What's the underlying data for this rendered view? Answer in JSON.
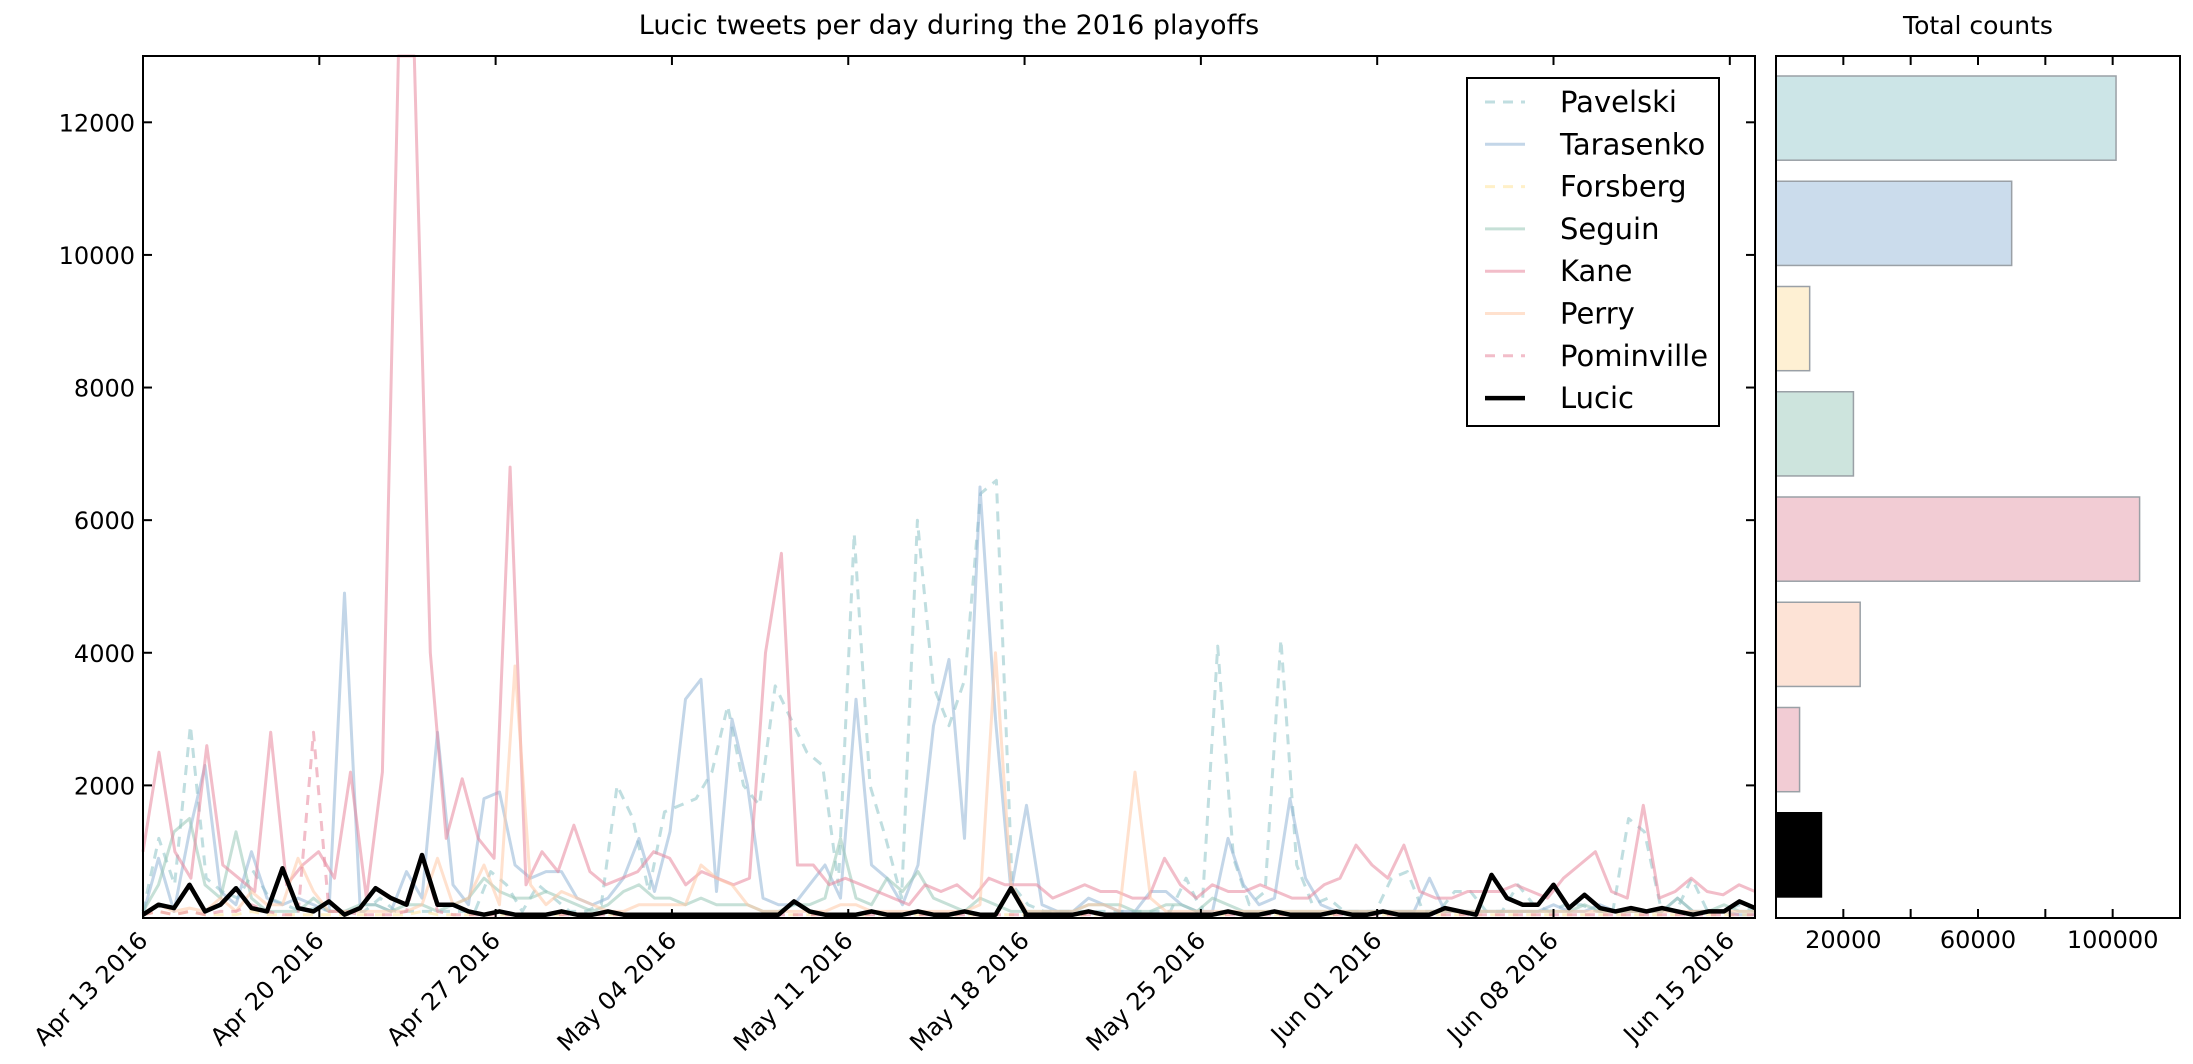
{
  "chart_data": [
    {
      "type": "line",
      "title": "Lucic tweets per day during the 2016 playoffs",
      "xlabel": "",
      "ylabel": "",
      "ylim": [
        0,
        13000
      ],
      "x_range": [
        "2016-04-13",
        "2016-06-16"
      ],
      "x_tick_labels": [
        "Apr 13 2016",
        "Apr 20 2016",
        "Apr 27 2016",
        "May 04 2016",
        "May 11 2016",
        "May 18 2016",
        "May 25 2016",
        "Jun 01 2016",
        "Jun 08 2016",
        "Jun 15 2016"
      ],
      "y_tick_labels": [
        "2000",
        "4000",
        "6000",
        "8000",
        "10000",
        "12000"
      ],
      "y_ticks": [
        2000,
        4000,
        6000,
        8000,
        10000,
        12000
      ],
      "grid": false,
      "legend_position": "top-right",
      "series": [
        {
          "name": "Pavelski",
          "color": "#8dc3c6",
          "dashed": true,
          "width": 3,
          "opacity": 0.55,
          "values": [
            100,
            1200,
            500,
            2900,
            600,
            400,
            300,
            700,
            300,
            200,
            100,
            150,
            100,
            100,
            100,
            300,
            100,
            100,
            100,
            100,
            100,
            100,
            700,
            500,
            100,
            500,
            300,
            100,
            100,
            200,
            2000,
            1500,
            400,
            1600,
            1700,
            1800,
            2200,
            3200,
            2000,
            1700,
            3500,
            3000,
            2500,
            2300,
            500,
            5800,
            2000,
            1200,
            300,
            6000,
            3500,
            2900,
            3600,
            6400,
            6600,
            500,
            200,
            100,
            100,
            100,
            100,
            100,
            100,
            100,
            100,
            100,
            600,
            100,
            4100,
            900,
            200,
            400,
            4200,
            800,
            200,
            300,
            100,
            100,
            100,
            600,
            700,
            100,
            100,
            400,
            400,
            100,
            100,
            500,
            200,
            100,
            200,
            200,
            100,
            100,
            1500,
            1300,
            200,
            100,
            600,
            100,
            100,
            200,
            100
          ]
        },
        {
          "name": "Tarasenko",
          "color": "#91b4d6",
          "dashed": false,
          "width": 3,
          "opacity": 0.55,
          "values": [
            50,
            900,
            100,
            1300,
            2300,
            400,
            200,
            1000,
            300,
            200,
            300,
            200,
            100,
            4900,
            200,
            200,
            100,
            700,
            300,
            2800,
            500,
            200,
            1800,
            1900,
            800,
            600,
            700,
            700,
            300,
            200,
            300,
            600,
            1200,
            400,
            1300,
            3300,
            3600,
            400,
            3000,
            2000,
            300,
            200,
            200,
            500,
            800,
            300,
            3300,
            800,
            600,
            200,
            800,
            2900,
            3900,
            1200,
            6500,
            3000,
            400,
            1700,
            200,
            100,
            100,
            300,
            200,
            100,
            100,
            400,
            400,
            200,
            100,
            100,
            1200,
            500,
            200,
            300,
            1800,
            600,
            200,
            100,
            100,
            100,
            100,
            100,
            100,
            600,
            100,
            100,
            100,
            100,
            100,
            100,
            100,
            200,
            100,
            100,
            200,
            100,
            100,
            100,
            100,
            300,
            100,
            100,
            100,
            50,
            50
          ]
        },
        {
          "name": "Forsberg",
          "color": "#ffe39b",
          "dashed": true,
          "width": 3,
          "opacity": 0.55,
          "values": [
            50,
            100,
            50,
            100,
            50,
            50,
            50,
            100,
            50,
            50,
            50,
            50,
            50,
            50,
            50,
            50,
            50,
            50,
            100,
            50,
            50,
            50,
            50,
            50,
            50,
            50,
            50,
            50,
            50,
            50,
            50,
            50,
            50,
            50,
            50,
            50,
            50,
            50,
            50,
            50,
            50,
            50,
            50,
            50,
            50,
            50,
            50,
            50,
            50,
            50,
            50,
            50,
            50,
            50,
            50,
            50,
            50,
            50,
            50,
            50,
            50,
            50,
            50,
            50,
            50,
            50,
            50,
            50,
            50,
            50,
            50,
            50,
            50,
            50,
            50,
            50,
            50,
            50,
            50,
            50,
            50,
            50,
            50,
            50,
            50,
            50,
            50,
            50,
            50,
            50,
            50,
            50,
            50,
            50,
            50,
            50,
            50,
            50,
            50,
            50,
            50,
            50,
            50,
            50,
            50
          ]
        },
        {
          "name": "Seguin",
          "color": "#98c7b7",
          "dashed": false,
          "width": 3,
          "opacity": 0.55,
          "values": [
            100,
            500,
            1300,
            1500,
            500,
            300,
            1300,
            300,
            100,
            100,
            100,
            300,
            100,
            100,
            200,
            200,
            100,
            200,
            200,
            100,
            200,
            300,
            600,
            400,
            300,
            300,
            400,
            300,
            200,
            100,
            200,
            400,
            500,
            300,
            300,
            200,
            300,
            200,
            200,
            200,
            100,
            100,
            200,
            200,
            300,
            1200,
            300,
            200,
            600,
            400,
            700,
            300,
            200,
            100,
            300,
            200,
            100,
            100,
            100,
            100,
            100,
            200,
            200,
            200,
            100,
            100,
            200,
            200,
            100,
            300,
            200,
            100,
            100,
            100,
            100,
            100,
            100,
            100,
            100,
            100,
            100,
            100,
            100,
            100,
            100,
            100,
            100,
            100,
            100,
            100,
            100,
            100,
            100,
            200,
            100,
            100,
            100,
            100,
            100,
            300,
            100,
            100,
            200,
            100,
            100
          ]
        },
        {
          "name": "Kane",
          "color": "#e8879c",
          "dashed": false,
          "width": 3,
          "opacity": 0.55,
          "values": [
            1000,
            2500,
            1000,
            600,
            2600,
            800,
            600,
            400,
            2800,
            500,
            800,
            1000,
            600,
            2200,
            300,
            2200,
            13000,
            13000,
            4000,
            1200,
            2100,
            1200,
            900,
            6800,
            500,
            1000,
            700,
            1400,
            700,
            500,
            600,
            700,
            1000,
            900,
            500,
            700,
            600,
            500,
            600,
            4000,
            5500,
            800,
            800,
            500,
            600,
            500,
            400,
            300,
            200,
            500,
            400,
            500,
            300,
            600,
            500,
            500,
            500,
            300,
            400,
            500,
            400,
            400,
            300,
            300,
            900,
            500,
            300,
            500,
            400,
            400,
            500,
            400,
            300,
            300,
            500,
            600,
            1100,
            800,
            600,
            1100,
            400,
            300,
            300,
            400,
            400,
            400,
            500,
            400,
            300,
            600,
            800,
            1000,
            400,
            300,
            1700,
            300,
            400,
            600,
            400,
            350,
            500,
            400
          ]
        },
        {
          "name": "Perry",
          "color": "#ffc8a5",
          "dashed": false,
          "width": 3,
          "opacity": 0.55,
          "values": [
            50,
            200,
            100,
            150,
            100,
            300,
            100,
            400,
            200,
            200,
            900,
            400,
            100,
            100,
            100,
            100,
            100,
            100,
            200,
            900,
            200,
            300,
            800,
            200,
            3800,
            500,
            200,
            400,
            300,
            200,
            100,
            100,
            200,
            200,
            200,
            200,
            800,
            600,
            500,
            200,
            100,
            100,
            100,
            100,
            100,
            200,
            200,
            100,
            100,
            100,
            100,
            100,
            100,
            100,
            200,
            4000,
            500,
            100,
            100,
            100,
            100,
            200,
            200,
            100,
            2200,
            300,
            100,
            100,
            100,
            100,
            100,
            100,
            100,
            100,
            100,
            100,
            100,
            100,
            100,
            100,
            100,
            100,
            100,
            100,
            100,
            100,
            100,
            100,
            100,
            100,
            100,
            100,
            100,
            100,
            100,
            100,
            100,
            100,
            100,
            100,
            100,
            100,
            100,
            100,
            100
          ]
        },
        {
          "name": "Pominville",
          "color": "#e8879c",
          "dashed": true,
          "width": 3,
          "opacity": 0.55,
          "values": [
            50,
            100,
            50,
            100,
            50,
            100,
            100,
            200,
            100,
            50,
            50,
            2800,
            100,
            100,
            50,
            50,
            50,
            100,
            1000,
            100,
            50,
            50,
            50,
            50,
            50,
            50,
            50,
            50,
            50,
            50,
            50,
            50,
            50,
            50,
            50,
            50,
            50,
            50,
            50,
            50,
            50,
            50,
            50,
            50,
            50,
            50,
            50,
            50,
            50,
            50,
            50,
            50,
            50,
            50,
            50,
            50,
            50,
            50,
            50,
            50,
            50,
            50,
            50,
            50,
            50,
            50,
            50,
            50,
            50,
            50,
            50,
            50,
            50,
            50,
            50,
            50,
            50,
            50,
            50,
            50,
            50,
            50,
            50,
            50,
            50,
            50,
            50,
            50,
            50,
            50,
            50,
            50,
            50,
            50,
            50,
            50,
            50,
            50,
            50,
            50,
            50,
            50,
            50,
            50,
            50
          ]
        },
        {
          "name": "Lucic",
          "color": "#000000",
          "dashed": false,
          "width": 4.5,
          "opacity": 1,
          "values": [
            50,
            200,
            150,
            500,
            100,
            200,
            450,
            150,
            100,
            750,
            150,
            100,
            250,
            50,
            150,
            450,
            300,
            200,
            950,
            200,
            200,
            100,
            50,
            100,
            50,
            50,
            50,
            100,
            50,
            50,
            100,
            50,
            50,
            50,
            50,
            50,
            50,
            50,
            50,
            50,
            50,
            50,
            250,
            100,
            50,
            50,
            50,
            100,
            50,
            50,
            100,
            50,
            50,
            100,
            50,
            50,
            450,
            50,
            50,
            50,
            50,
            100,
            50,
            50,
            50,
            50,
            50,
            50,
            50,
            50,
            100,
            50,
            50,
            100,
            50,
            50,
            50,
            100,
            50,
            50,
            100,
            50,
            50,
            50,
            150,
            100,
            50,
            650,
            300,
            200,
            200,
            500,
            150,
            350,
            150,
            100,
            150,
            100,
            150,
            100,
            50,
            100,
            100,
            250,
            150
          ]
        }
      ]
    },
    {
      "type": "bar",
      "orientation": "horizontal",
      "title": "Total counts",
      "xlabel": "",
      "ylabel": "",
      "xlim": [
        0,
        120000
      ],
      "x_tick_labels": [
        "20000",
        "60000",
        "100000"
      ],
      "x_ticks": [
        20000,
        60000,
        100000
      ],
      "minor_ticks": [
        40000,
        80000
      ],
      "categories": [
        "Pavelski",
        "Tarasenko",
        "Forsberg",
        "Seguin",
        "Kane",
        "Perry",
        "Pominville",
        "Lucic"
      ],
      "values": [
        101000,
        70000,
        10000,
        23000,
        108000,
        25000,
        7000,
        13500
      ],
      "colors": [
        "#cce5e7",
        "#cbdcec",
        "#fef0d3",
        "#cde4dd",
        "#f2ccd4",
        "#fde3d6",
        "#f2ccd4",
        "#000000"
      ]
    }
  ]
}
